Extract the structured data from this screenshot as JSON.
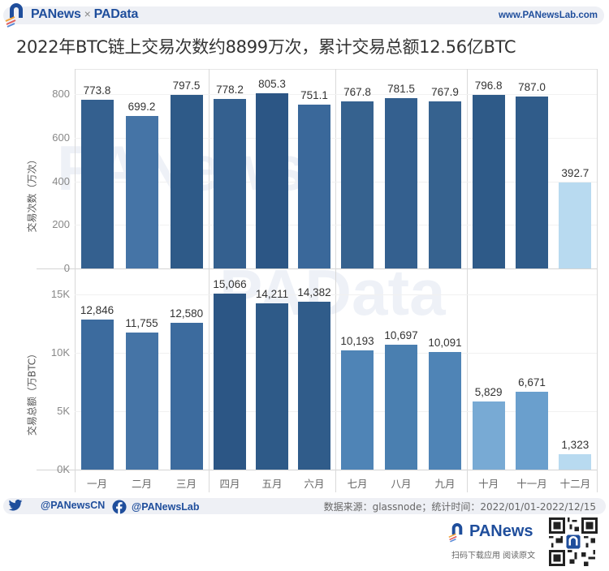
{
  "header": {
    "brand_left": "PANews",
    "brand_separator": "×",
    "brand_right": "PAData",
    "website": "www.PANewsLab.com"
  },
  "title": "2022年BTC链上交易次数约8899万次，累计交易总额12.56亿BTC",
  "colors": {
    "dark_blue": "#2c5a8a",
    "mid_dark_blue": "#34608f",
    "mid_blue": "#3f71a3",
    "steel_blue": "#4a7fb0",
    "light_steel": "#5a8fc0",
    "sky_blue": "#79abd6",
    "pale_blue": "#b8daf0",
    "brand_blue": "#1f4e9c",
    "grid": "#f1f1f1"
  },
  "chart_data": [
    {
      "type": "bar",
      "title": "交易次数",
      "categories": [
        "一月",
        "二月",
        "三月",
        "四月",
        "五月",
        "六月",
        "七月",
        "八月",
        "九月",
        "十月",
        "十一月",
        "十二月"
      ],
      "values": [
        773.8,
        699.2,
        797.5,
        778.2,
        805.3,
        751.1,
        767.8,
        781.5,
        767.9,
        796.8,
        787.0,
        392.7
      ],
      "value_labels": [
        "773.8",
        "699.2",
        "797.5",
        "778.2",
        "805.3",
        "751.1",
        "767.8",
        "781.5",
        "767.9",
        "796.8",
        "787.0",
        "392.7"
      ],
      "xlabel": "",
      "ylabel": "交易次数（万次）",
      "yticks": [
        "0",
        "200",
        "400",
        "600",
        "800"
      ],
      "ylim": [
        0,
        900
      ],
      "grid": true,
      "panels": [
        "Q1",
        "Q2",
        "Q3",
        "Q4"
      ]
    },
    {
      "type": "bar",
      "title": "交易总额",
      "categories": [
        "一月",
        "二月",
        "三月",
        "四月",
        "五月",
        "六月",
        "七月",
        "八月",
        "九月",
        "十月",
        "十一月",
        "十二月"
      ],
      "values": [
        12846,
        11755,
        12580,
        15066,
        14211,
        14382,
        10193,
        10697,
        10091,
        5829,
        6671,
        1323
      ],
      "value_labels": [
        "12,846",
        "11,755",
        "12,580",
        "15,066",
        "14,211",
        "14,382",
        "10,193",
        "10,697",
        "10,091",
        "5,829",
        "6,671",
        "1,323"
      ],
      "xlabel": "",
      "ylabel": "交易总额（万BTC）",
      "yticks": [
        "0K",
        "5K",
        "10K",
        "15K"
      ],
      "ylim": [
        0,
        17000
      ],
      "grid": true,
      "panels": [
        "Q1",
        "Q2",
        "Q3",
        "Q4"
      ]
    }
  ],
  "footer": {
    "twitter_handle": "@PANewsCN",
    "facebook_handle": "@PANewsLab",
    "source": "数据来源：glassnode；统计时间：2022/01/01-2022/12/15",
    "app_brand": "PANews",
    "app_cta": "扫码下载应用  阅读原文"
  },
  "watermark": {
    "top": "PANews",
    "bottom": "PAData"
  }
}
